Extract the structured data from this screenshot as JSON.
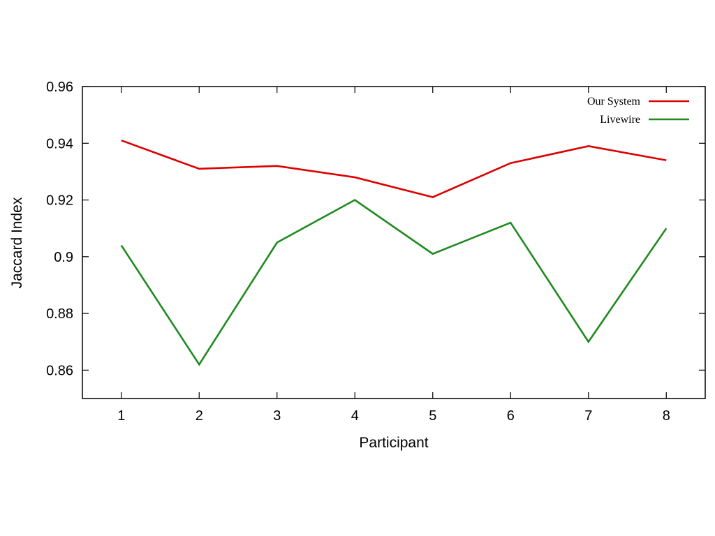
{
  "chart_data": {
    "type": "line",
    "x": [
      1,
      2,
      3,
      4,
      5,
      6,
      7,
      8
    ],
    "x_tick_labels": [
      "1",
      "2",
      "3",
      "4",
      "5",
      "6",
      "7",
      "8"
    ],
    "xlim": [
      0.5,
      8.5
    ],
    "xlabel": "Participant",
    "ylabel": "Jaccard Index",
    "ylim": [
      0.85,
      0.96
    ],
    "y_ticks": [
      0.86,
      0.88,
      0.9,
      0.92,
      0.94,
      0.96
    ],
    "y_tick_labels": [
      "0.86",
      "0.88",
      "0.9",
      "0.92",
      "0.94",
      "0.96"
    ],
    "grid": false,
    "legend_position": "top-right",
    "series": [
      {
        "name": "Our System",
        "color": "#dd0000",
        "values": [
          0.941,
          0.931,
          0.932,
          0.928,
          0.921,
          0.933,
          0.939,
          0.934
        ]
      },
      {
        "name": "Livewire",
        "color": "#1f8a1f",
        "values": [
          0.904,
          0.862,
          0.905,
          0.92,
          0.901,
          0.912,
          0.87,
          0.91
        ]
      }
    ]
  }
}
